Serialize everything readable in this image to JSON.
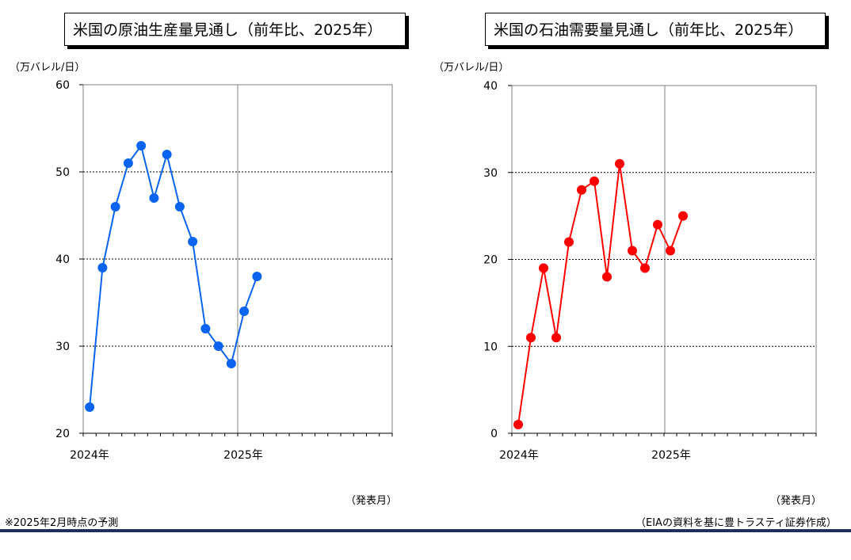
{
  "left": {
    "title": "米国の原油生産量見通し（前年比、2025年）",
    "unit": "（万バレル/日）",
    "published": "（発表月）"
  },
  "right": {
    "title": "米国の石油需要量見通し（前年比、2025年）",
    "unit": "（万バレル/日）",
    "published": "（発表月）"
  },
  "footnote": "※2025年2月時点の予測",
  "source": "（EIAの資料を基に豊トラスティ証券作成）",
  "chart_data": [
    {
      "type": "line",
      "title": "米国の原油生産量見通し（前年比、2025年）",
      "ylabel": "（万バレル/日）",
      "xlabel": "（発表月）",
      "ylim": [
        20,
        60
      ],
      "yticks": [
        20,
        30,
        40,
        50,
        60
      ],
      "x_tick_labels": [
        "2024年",
        "2025年"
      ],
      "months_on_axis": 24,
      "grid": "horizontal dotted",
      "color": "#0a64f0",
      "series": [
        {
          "values": [
            23,
            39,
            46,
            51,
            53,
            47,
            52,
            46,
            42,
            32,
            30,
            28,
            34,
            38
          ]
        }
      ]
    },
    {
      "type": "line",
      "title": "米国の石油需要量見通し（前年比、2025年）",
      "ylabel": "（万バレル/日）",
      "xlabel": "（発表月）",
      "ylim": [
        0,
        40
      ],
      "yticks": [
        0,
        10,
        20,
        30,
        40
      ],
      "x_tick_labels": [
        "2024年",
        "2025年"
      ],
      "months_on_axis": 24,
      "grid": "horizontal dotted",
      "color": "#ff0000",
      "series": [
        {
          "values": [
            1,
            11,
            19,
            11,
            22,
            28,
            29,
            18,
            31,
            21,
            19,
            24,
            21,
            25
          ]
        }
      ]
    }
  ]
}
